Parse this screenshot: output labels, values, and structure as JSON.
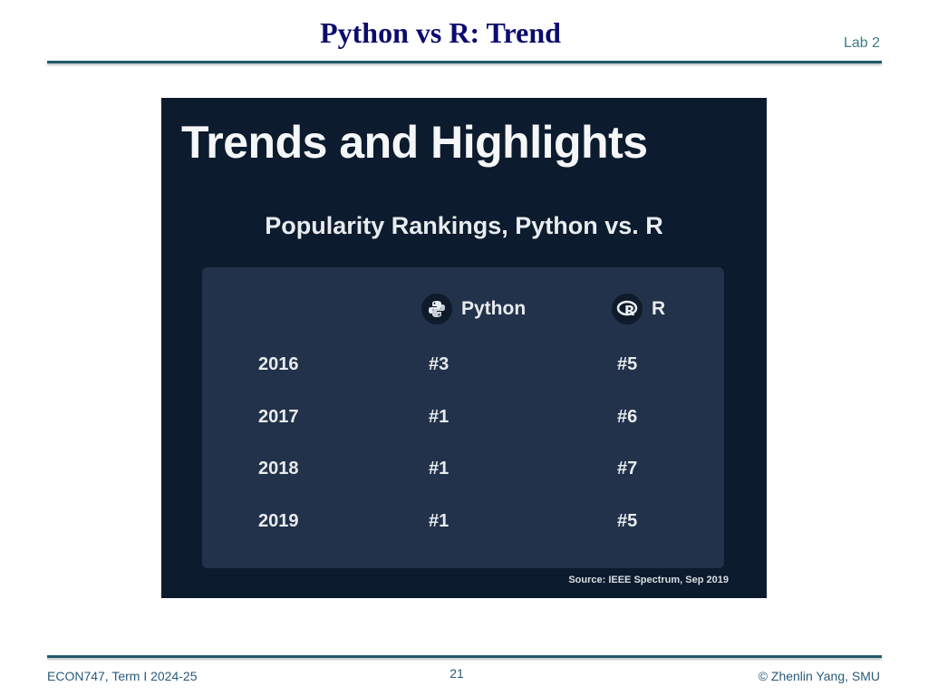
{
  "slide": {
    "title": "Python vs R: Trend",
    "lab_label": "Lab 2"
  },
  "figure": {
    "title": "Trends and Highlights",
    "subtitle": "Popularity Rankings, Python vs. R",
    "columns": {
      "python": "Python",
      "r": "R"
    },
    "rows": [
      {
        "year": "2016",
        "python": "#3",
        "r": "#5"
      },
      {
        "year": "2017",
        "python": "#1",
        "r": "#6"
      },
      {
        "year": "2018",
        "python": "#1",
        "r": "#7"
      },
      {
        "year": "2019",
        "python": "#1",
        "r": "#5"
      }
    ],
    "source": "Source: IEEE Spectrum, Sep 2019",
    "icons": {
      "python": "python-logo-icon",
      "r": "r-logo-icon"
    }
  },
  "footer": {
    "course": "ECON747, Term I  2024-25",
    "page_number": "21",
    "copyright": "© Zhenlin Yang, SMU"
  },
  "colors": {
    "title": "#0b0b6e",
    "accent": "#215a6b",
    "figure_bg": "#0c1b2e",
    "panel_bg": "#22324a"
  }
}
